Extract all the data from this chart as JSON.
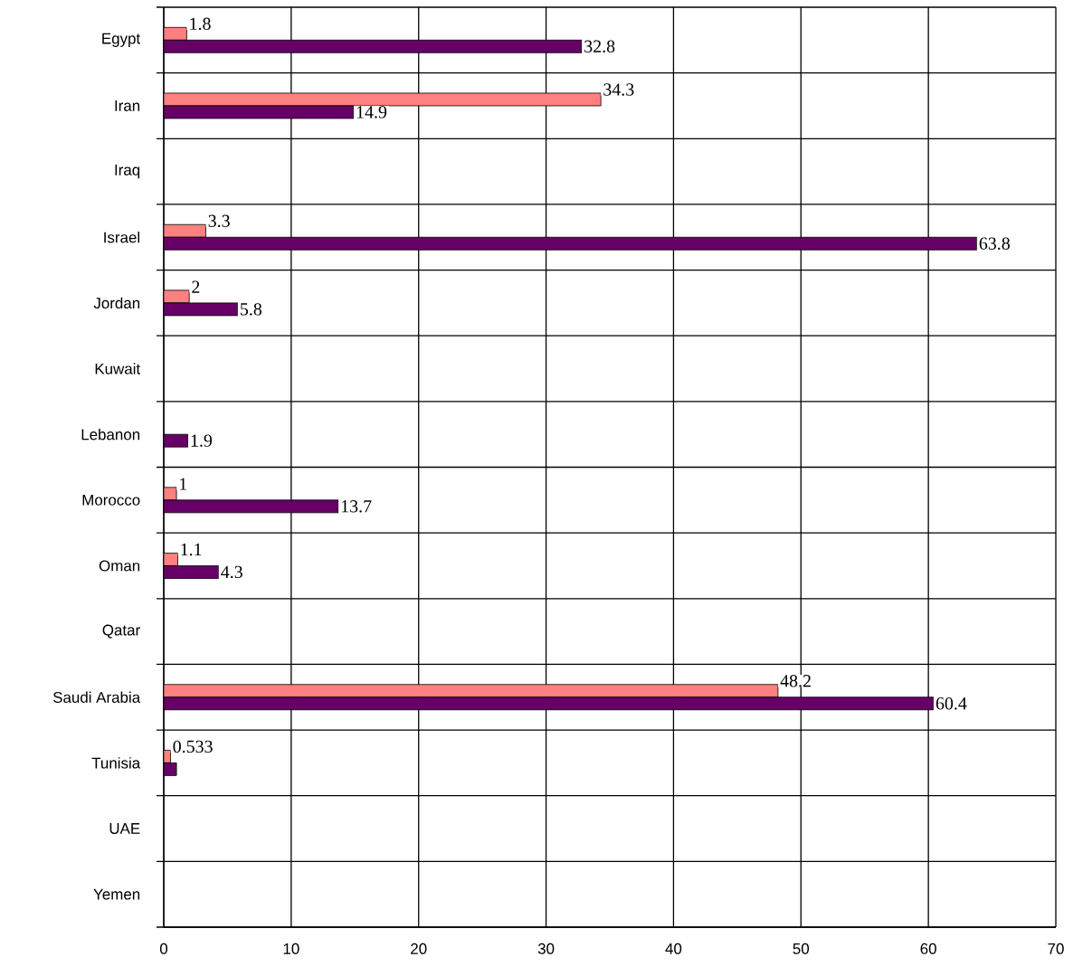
{
  "chart_data": {
    "type": "bar",
    "orientation": "horizontal",
    "categories": [
      "Egypt",
      "Iran",
      "Iraq",
      "Israel",
      "Jordan",
      "Kuwait",
      "Lebanon",
      "Morocco",
      "Oman",
      "Qatar",
      "Saudi Arabia",
      "Tunisia",
      "UAE",
      "Yemen"
    ],
    "series": [
      {
        "color": "#ff8080",
        "values": [
          1.8,
          34.3,
          null,
          3.3,
          2,
          null,
          null,
          1,
          1.1,
          null,
          48.2,
          0.533,
          null,
          null
        ],
        "value_labels": [
          "1.8",
          "34.3",
          null,
          "3.3",
          "2",
          null,
          null,
          "1",
          "1.1",
          null,
          "48.2",
          "0.533",
          null,
          null
        ]
      },
      {
        "color": "#660066",
        "values": [
          32.8,
          14.9,
          null,
          63.8,
          5.8,
          null,
          1.9,
          13.7,
          4.3,
          null,
          60.4,
          1.0,
          null,
          null
        ],
        "value_labels": [
          "32.8",
          "14.9",
          null,
          "63.8",
          "5.8",
          null,
          "1.9",
          "13.7",
          "4.3",
          null,
          "60.4",
          null,
          null,
          null
        ]
      }
    ],
    "xlim": [
      0,
      70
    ],
    "xticks": [
      0,
      10,
      20,
      30,
      40,
      50,
      60,
      70
    ],
    "grid": true
  }
}
